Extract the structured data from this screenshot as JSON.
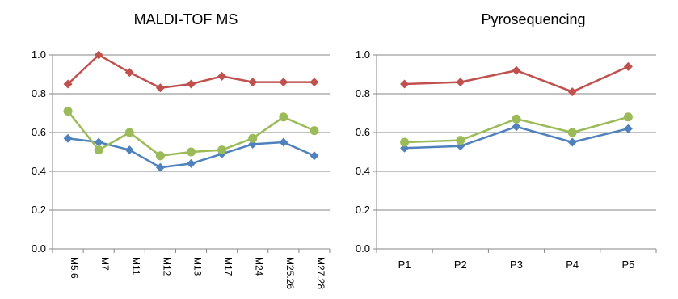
{
  "chart_data": [
    {
      "type": "line",
      "title": "MALDI-TOF MS",
      "categories": [
        "M5.6",
        "M7",
        "M11",
        "M12",
        "M13",
        "M17",
        "M24",
        "M25.26",
        "M27.28"
      ],
      "ylim": [
        0.0,
        1.0
      ],
      "yticks": [
        "0.0",
        "0.2",
        "0.4",
        "0.6",
        "0.8",
        "1.0"
      ],
      "grid": true,
      "xlabel_rotation": 90,
      "series": [
        {
          "color": "#4f81bd",
          "marker": "diamond",
          "values": [
            0.57,
            0.55,
            0.51,
            0.42,
            0.44,
            0.49,
            0.54,
            0.55,
            0.48
          ]
        },
        {
          "color": "#c0504d",
          "marker": "diamond",
          "values": [
            0.85,
            1.0,
            0.91,
            0.83,
            0.85,
            0.89,
            0.86,
            0.86,
            0.86
          ]
        },
        {
          "color": "#9bbb59",
          "marker": "circle",
          "values": [
            0.71,
            0.51,
            0.6,
            0.48,
            0.5,
            0.51,
            0.57,
            0.68,
            0.61
          ]
        }
      ]
    },
    {
      "type": "line",
      "title": "Pyrosequencing",
      "categories": [
        "P1",
        "P2",
        "P3",
        "P4",
        "P5"
      ],
      "ylim": [
        0.0,
        1.0
      ],
      "yticks": [
        "0.0",
        "0.2",
        "0.4",
        "0.6",
        "0.8",
        "1.0"
      ],
      "grid": true,
      "xlabel_rotation": 0,
      "series": [
        {
          "color": "#4f81bd",
          "marker": "diamond",
          "values": [
            0.52,
            0.53,
            0.63,
            0.55,
            0.62
          ]
        },
        {
          "color": "#c0504d",
          "marker": "diamond",
          "values": [
            0.85,
            0.86,
            0.92,
            0.81,
            0.94
          ]
        },
        {
          "color": "#9bbb59",
          "marker": "circle",
          "values": [
            0.55,
            0.56,
            0.67,
            0.6,
            0.68
          ]
        }
      ]
    }
  ]
}
